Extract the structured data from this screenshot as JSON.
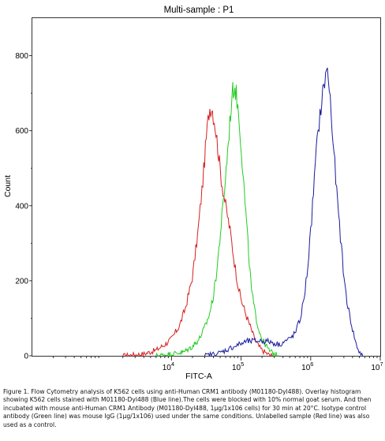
{
  "chart_data": {
    "type": "line",
    "title": "Multi-sample : P1",
    "xlabel": "FITC-A",
    "ylabel": "Count",
    "x_scale": "log",
    "xlim": [
      100,
      10000000
    ],
    "ylim": [
      0,
      900
    ],
    "x_ticks": [
      {
        "value": 10000,
        "base": "10",
        "exp": "4"
      },
      {
        "value": 100000,
        "base": "10",
        "exp": "5"
      },
      {
        "value": 1000000,
        "base": "10",
        "exp": "6"
      },
      {
        "value": 10000000,
        "base": "10",
        "exp": "7"
      }
    ],
    "y_ticks": [
      0,
      200,
      400,
      600,
      800
    ],
    "series": [
      {
        "color": "#d42020",
        "x": [
          2000,
          4000,
          6000,
          8000,
          10000,
          13000,
          16000,
          20000,
          24000,
          28000,
          32000,
          35000,
          38000,
          42000,
          46000,
          52000,
          60000,
          70000,
          80000,
          90000,
          100000,
          120000,
          140000,
          160000,
          180000,
          200000,
          240000,
          280000
        ],
        "y": [
          0,
          5,
          15,
          30,
          45,
          80,
          130,
          210,
          330,
          460,
          590,
          660,
          665,
          620,
          560,
          470,
          400,
          330,
          250,
          190,
          150,
          105,
          70,
          40,
          25,
          15,
          5,
          0
        ]
      },
      {
        "color": "#22cc22",
        "x": [
          6000,
          10000,
          15000,
          20000,
          25000,
          30000,
          35000,
          40000,
          45000,
          50000,
          55000,
          60000,
          65000,
          70000,
          75000,
          80000,
          85000,
          90000,
          95000,
          100000,
          110000,
          120000,
          130000,
          140000,
          160000,
          180000,
          200000,
          250000,
          300000,
          350000
        ],
        "y": [
          0,
          5,
          10,
          25,
          45,
          75,
          110,
          160,
          230,
          320,
          400,
          480,
          560,
          640,
          700,
          720,
          700,
          660,
          620,
          560,
          450,
          350,
          260,
          180,
          110,
          70,
          45,
          15,
          5,
          0
        ]
      },
      {
        "color": "#1a1a9e",
        "x": [
          30000,
          50000,
          80000,
          120000,
          180000,
          250000,
          350000,
          500000,
          600000,
          700000,
          800000,
          900000,
          1000000,
          1100000,
          1200000,
          1300000,
          1400000,
          1500000,
          1600000,
          1700000,
          1800000,
          1900000,
          2000000,
          2200000,
          2400000,
          2700000,
          3000000,
          3300000,
          3600000,
          4000000,
          4500000,
          5000000,
          5600000
        ],
        "y": [
          0,
          8,
          25,
          38,
          40,
          38,
          30,
          45,
          60,
          95,
          150,
          230,
          330,
          440,
          540,
          610,
          660,
          700,
          740,
          760,
          740,
          690,
          620,
          520,
          420,
          310,
          210,
          150,
          110,
          70,
          30,
          10,
          0
        ]
      }
    ]
  },
  "caption": "Figure 1. Flow Cytometry analysis of K562 cells using anti-Human CRM1 antibody (M01180-Dyl488).  Overlay histogram showing K562 cells stained with M01180-Dyl488 (Blue line).The cells were blocked with 10% normal goat serum.  And then incubated with mouse anti-Human CRM1 Antibody (M01180-Dyl488, 1µg/1x106 cells) for 30 min at 20°C. Isotype control antibody (Green line) was mouse IgG (1µg/1x106) used under the same conditions. Unlabelled sample (Red line) was also used as a control."
}
